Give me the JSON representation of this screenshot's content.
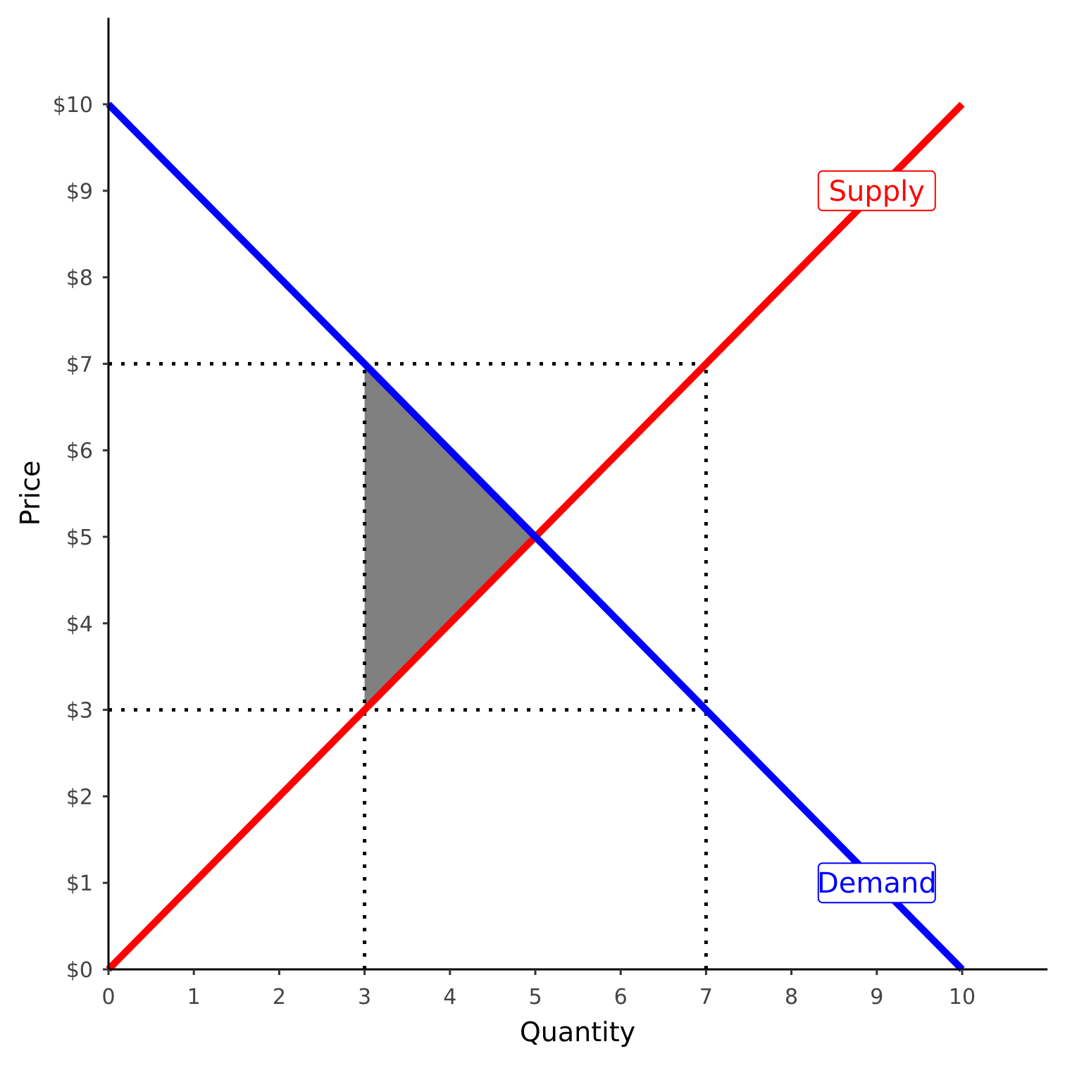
{
  "chart_data": {
    "type": "line",
    "xlabel": "Quantity",
    "ylabel": "Price",
    "xlim": [
      0,
      11
    ],
    "ylim": [
      0,
      11
    ],
    "x_ticks": [
      0,
      1,
      2,
      3,
      4,
      5,
      6,
      7,
      8,
      9,
      10
    ],
    "x_tick_labels": [
      "0",
      "1",
      "2",
      "3",
      "4",
      "5",
      "6",
      "7",
      "8",
      "9",
      "10"
    ],
    "y_ticks": [
      0,
      1,
      2,
      3,
      4,
      5,
      6,
      7,
      8,
      9,
      10
    ],
    "y_tick_labels": [
      "$0",
      "$1",
      "$2",
      "$3",
      "$4",
      "$5",
      "$6",
      "$7",
      "$8",
      "$9",
      "$10"
    ],
    "grid": false,
    "series": [
      {
        "name": "Supply",
        "color": "#ff0000",
        "x": [
          0,
          10
        ],
        "y": [
          0,
          10
        ],
        "label_at": [
          9,
          9
        ]
      },
      {
        "name": "Demand",
        "color": "#0000ff",
        "x": [
          0,
          10
        ],
        "y": [
          10,
          0
        ],
        "label_at": [
          9,
          1
        ]
      }
    ],
    "shaded_region": {
      "color": "#808080",
      "points": [
        [
          3,
          7
        ],
        [
          3,
          3
        ],
        [
          5,
          5
        ]
      ]
    },
    "reference_lines": {
      "style": "dotted",
      "color": "#000000",
      "segments": [
        {
          "from": [
            0,
            7
          ],
          "to": [
            7,
            7
          ]
        },
        {
          "from": [
            0,
            3
          ],
          "to": [
            7,
            3
          ]
        },
        {
          "from": [
            3,
            0
          ],
          "to": [
            3,
            7
          ]
        },
        {
          "from": [
            7,
            0
          ],
          "to": [
            7,
            7
          ]
        }
      ]
    }
  }
}
